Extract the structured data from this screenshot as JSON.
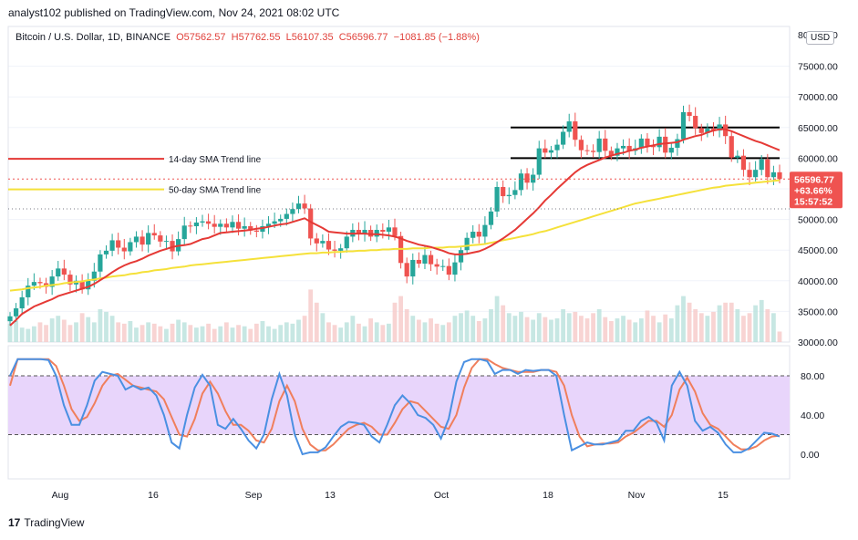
{
  "header": {
    "published_by": "analyst102 published on TradingView.com, Nov 24, 2021 08:02 UTC"
  },
  "legend": {
    "symbol": "Bitcoin / U.S. Dollar, 1D, BINANCE",
    "open": "O57562.57",
    "high": "H57762.55",
    "low": "L56107.35",
    "close": "C56596.77",
    "change": "−1081.85 (−1.88%)"
  },
  "currency_button": "USD",
  "footer": {
    "brand": "TradingView"
  },
  "colors": {
    "up": "#26a69a",
    "down": "#ef5350",
    "sma14": "#e53935",
    "sma50": "#f5e13a",
    "rsi_band": "#e8d5fb",
    "stoch_k": "#4a90e2",
    "stoch_d": "#f07f5c"
  },
  "chart_data": [
    {
      "type": "candlestick",
      "title": "Bitcoin / U.S. Dollar, 1D, BINANCE",
      "y_ticks": [
        "80000.00",
        "75000.00",
        "70000.00",
        "65000.00",
        "60000.00",
        "55000.00",
        "50000.00",
        "45000.00",
        "40000.00",
        "35000.00",
        "30000.00"
      ],
      "ylim": [
        30000,
        80000
      ],
      "x_ticks": [
        "Aug",
        "16",
        "Sep",
        "13",
        "Oct",
        "18",
        "Nov",
        "15"
      ],
      "current_price_label": "56596.77",
      "change_label": "+63.66%",
      "countdown_label": "15:57:52",
      "annotations": [
        "14-day SMA Trend line",
        "50-day SMA Trend line"
      ],
      "horizontal_lines": [
        65000,
        60000
      ],
      "ohlc_close": [
        34200,
        35500,
        37300,
        39200,
        39800,
        39600,
        39000,
        40700,
        42000,
        41000,
        39400,
        40000,
        38600,
        40000,
        41500,
        44300,
        44900,
        46600,
        45400,
        44800,
        46300,
        47200,
        45900,
        47800,
        47400,
        46400,
        46500,
        44800,
        46800,
        49000,
        48900,
        49500,
        49700,
        49300,
        48800,
        49300,
        48700,
        49600,
        48500,
        48900,
        48200,
        48000,
        48900,
        49300,
        49700,
        50100,
        50900,
        51700,
        52600,
        51800,
        46900,
        46100,
        46500,
        45100,
        44900,
        45300,
        47200,
        48300,
        47700,
        48300,
        47200,
        48300,
        48000,
        48700,
        47300,
        42900,
        40700,
        43400,
        42800,
        44200,
        42700,
        42300,
        42400,
        41000,
        43000,
        45000,
        47000,
        48000,
        47200,
        49100,
        51300,
        55300,
        53800,
        54000,
        54800,
        57500,
        56000,
        57300,
        61600,
        60900,
        61300,
        62200,
        64300,
        66000,
        63000,
        61300,
        61200,
        61000,
        63200,
        61200,
        60400,
        61600,
        62000,
        61200,
        61600,
        63200,
        62000,
        61800,
        63500,
        60900,
        61700,
        63100,
        67500,
        66900,
        64900,
        64100,
        64800,
        64500,
        65500,
        63600,
        60100,
        60400,
        58100,
        56900,
        58100,
        59800,
        56900,
        57700,
        56597
      ],
      "sma14": [
        32700,
        33600,
        34600,
        35200,
        35800,
        36200,
        36600,
        37000,
        37500,
        37800,
        38100,
        38400,
        38700,
        39000,
        39500,
        40100,
        40700,
        41400,
        42000,
        42500,
        42900,
        43200,
        43600,
        44100,
        44500,
        44900,
        45200,
        45500,
        45700,
        45800,
        46000,
        46400,
        46800,
        47000,
        47400,
        47800,
        47900,
        48000,
        48100,
        48200,
        48300,
        48500,
        48600,
        48800,
        49000,
        49200,
        49300,
        49600,
        49900,
        50200,
        49600,
        49100,
        48600,
        48000,
        47900,
        47800,
        47700,
        47700,
        47700,
        47700,
        47600,
        47600,
        47500,
        47400,
        47200,
        46900,
        46500,
        46200,
        45900,
        45700,
        45500,
        45200,
        44900,
        44500,
        44300,
        44300,
        44400,
        44600,
        44800,
        45200,
        45700,
        46300,
        46900,
        47600,
        48300,
        49200,
        50100,
        51000,
        52000,
        53100,
        54000,
        55000,
        55900,
        56800,
        57700,
        58400,
        58900,
        59300,
        59700,
        60100,
        60400,
        60700,
        60900,
        61200,
        61400,
        61700,
        61900,
        62100,
        62300,
        62400,
        62500,
        62600,
        63000,
        63300,
        63600,
        63800,
        64200,
        64500,
        64700,
        64700,
        64400,
        64000,
        63600,
        63200,
        62800,
        62500,
        62100,
        61700,
        61300
      ],
      "sma50": [
        38400,
        38500,
        38600,
        38800,
        38900,
        39000,
        39200,
        39300,
        39400,
        39600,
        39700,
        39800,
        39900,
        40100,
        40200,
        40400,
        40500,
        40700,
        40800,
        40900,
        41100,
        41200,
        41400,
        41500,
        41700,
        41800,
        41900,
        42100,
        42200,
        42300,
        42500,
        42600,
        42700,
        42800,
        42900,
        43000,
        43100,
        43200,
        43300,
        43400,
        43500,
        43600,
        43700,
        43800,
        43900,
        44000,
        44100,
        44200,
        44300,
        44400,
        44500,
        44500,
        44600,
        44600,
        44700,
        44700,
        44800,
        44800,
        44900,
        44900,
        45000,
        45000,
        45100,
        45100,
        45200,
        45200,
        45200,
        45300,
        45300,
        45300,
        45400,
        45400,
        45400,
        45500,
        45500,
        45600,
        45700,
        45800,
        45900,
        46000,
        46200,
        46400,
        46600,
        46800,
        47000,
        47200,
        47400,
        47600,
        47900,
        48100,
        48400,
        48700,
        49000,
        49300,
        49600,
        49900,
        50200,
        50500,
        50800,
        51100,
        51400,
        51700,
        52000,
        52300,
        52600,
        52800,
        53000,
        53200,
        53400,
        53600,
        53800,
        54000,
        54200,
        54400,
        54600,
        54800,
        55000,
        55200,
        55300,
        55500,
        55600,
        55700,
        55800,
        55900,
        56000,
        56100,
        56200,
        56300,
        56400
      ],
      "volume": [
        28,
        33,
        22,
        20,
        24,
        30,
        26,
        36,
        40,
        34,
        26,
        30,
        44,
        38,
        30,
        50,
        46,
        40,
        30,
        28,
        32,
        22,
        26,
        30,
        28,
        24,
        20,
        28,
        34,
        30,
        26,
        22,
        24,
        28,
        20,
        24,
        30,
        22,
        26,
        24,
        20,
        28,
        32,
        24,
        20,
        26,
        30,
        28,
        34,
        40,
        80,
        60,
        44,
        30,
        26,
        22,
        30,
        40,
        28,
        24,
        36,
        30,
        26,
        28,
        60,
        70,
        50,
        40,
        34,
        30,
        36,
        28,
        26,
        30,
        40,
        44,
        48,
        40,
        32,
        36,
        50,
        70,
        56,
        44,
        40,
        46,
        38,
        34,
        44,
        38,
        34,
        36,
        50,
        44,
        46,
        40,
        36,
        44,
        50,
        38,
        32,
        36,
        40,
        34,
        30,
        36,
        48,
        40,
        30,
        42,
        36,
        56,
        70,
        60,
        50,
        44,
        40,
        46,
        56,
        60,
        60,
        50,
        40,
        44,
        56,
        64,
        50,
        44,
        16
      ],
      "stoch_k": [
        80,
        97,
        97,
        97,
        97,
        96,
        80,
        50,
        30,
        30,
        50,
        75,
        84,
        82,
        80,
        66,
        70,
        66,
        68,
        60,
        40,
        12,
        6,
        40,
        68,
        81,
        70,
        30,
        26,
        36,
        26,
        14,
        6,
        20,
        56,
        82,
        60,
        20,
        0,
        2,
        2,
        7,
        18,
        28,
        33,
        32,
        30,
        18,
        12,
        30,
        50,
        60,
        52,
        40,
        37,
        30,
        16,
        36,
        74,
        94,
        97,
        97,
        95,
        82,
        86,
        86,
        82,
        86,
        85,
        86,
        86,
        80,
        40,
        4,
        8,
        12,
        10,
        10,
        12,
        14,
        24,
        24,
        34,
        38,
        32,
        14,
        70,
        84,
        70,
        34,
        24,
        28,
        22,
        10,
        2,
        2,
        6,
        14,
        22,
        21,
        18
      ],
      "stoch_d": [
        70,
        97,
        97,
        97,
        97,
        97,
        90,
        70,
        46,
        34,
        38,
        52,
        70,
        80,
        82,
        76,
        70,
        68,
        66,
        64,
        56,
        38,
        20,
        18,
        36,
        62,
        74,
        62,
        44,
        30,
        30,
        24,
        14,
        12,
        26,
        54,
        70,
        54,
        26,
        10,
        4,
        4,
        10,
        18,
        26,
        30,
        32,
        28,
        20,
        20,
        32,
        46,
        54,
        52,
        44,
        36,
        28,
        26,
        40,
        68,
        88,
        97,
        97,
        92,
        88,
        86,
        84,
        84,
        84,
        86,
        86,
        84,
        70,
        40,
        18,
        8,
        10,
        11,
        11,
        12,
        18,
        22,
        28,
        34,
        34,
        28,
        40,
        66,
        78,
        64,
        42,
        30,
        26,
        18,
        10,
        5,
        5,
        8,
        14,
        18,
        19
      ],
      "stoch_ticks": [
        "80.00",
        "40.00",
        "0.00"
      ],
      "stoch_band": [
        20,
        80
      ]
    }
  ]
}
